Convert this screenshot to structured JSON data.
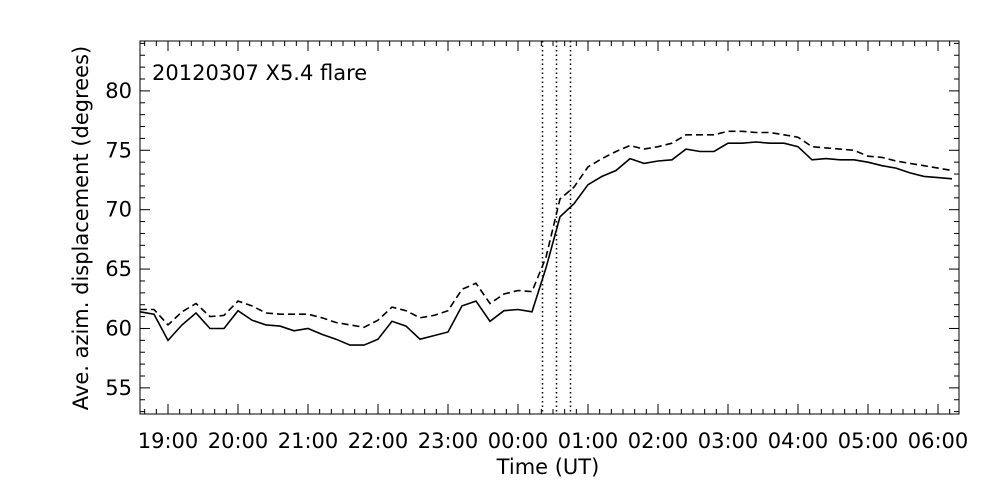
{
  "chart_data": {
    "type": "line",
    "title": "",
    "annotation": "20120307 X5.4 flare",
    "xlabel": "Time (UT)",
    "ylabel": "Ave. azim. displacement (degrees)",
    "x_tick_labels": [
      "19:00",
      "20:00",
      "21:00",
      "22:00",
      "23:00",
      "00:00",
      "01:00",
      "02:00",
      "03:00",
      "04:00",
      "05:00",
      "06:00"
    ],
    "y_tick_labels": [
      "55",
      "60",
      "65",
      "70",
      "75",
      "80"
    ],
    "y_ticks": [
      55,
      60,
      65,
      70,
      75,
      80
    ],
    "ylim": [
      52.8,
      84.2
    ],
    "xlim_hours": [
      18.6,
      30.3
    ],
    "grid": false,
    "legend": "none",
    "vertical_markers_hours": [
      24.35,
      24.55,
      24.75
    ],
    "series": [
      {
        "style": "solid",
        "x": [
          18.6,
          18.8,
          19.0,
          19.2,
          19.4,
          19.6,
          19.8,
          20.0,
          20.2,
          20.4,
          20.6,
          20.8,
          21.0,
          21.2,
          21.4,
          21.6,
          21.8,
          22.0,
          22.2,
          22.4,
          22.6,
          22.8,
          23.0,
          23.2,
          23.4,
          23.6,
          23.8,
          24.0,
          24.2,
          24.4,
          24.6,
          24.8,
          25.0,
          25.2,
          25.4,
          25.6,
          25.8,
          26.0,
          26.2,
          26.4,
          26.6,
          26.8,
          27.0,
          27.2,
          27.4,
          27.6,
          27.8,
          28.0,
          28.2,
          28.4,
          28.6,
          28.8,
          29.0,
          29.2,
          29.4,
          29.6,
          29.8,
          30.0,
          30.2
        ],
        "y": [
          61.4,
          61.2,
          59.0,
          60.3,
          61.3,
          60.0,
          60.0,
          61.5,
          60.7,
          60.3,
          60.2,
          59.8,
          60.0,
          59.5,
          59.1,
          58.6,
          58.6,
          59.1,
          60.6,
          60.2,
          59.1,
          59.4,
          59.7,
          61.9,
          62.3,
          60.6,
          61.5,
          61.6,
          61.4,
          65.1,
          69.4,
          70.5,
          72.1,
          72.8,
          73.3,
          74.3,
          73.9,
          74.1,
          74.2,
          75.1,
          74.9,
          74.9,
          75.6,
          75.6,
          75.7,
          75.6,
          75.6,
          75.3,
          74.2,
          74.3,
          74.2,
          74.2,
          74.0,
          73.7,
          73.5,
          73.1,
          72.8,
          72.7,
          72.6
        ]
      },
      {
        "style": "dashed",
        "x": [
          18.6,
          18.8,
          19.0,
          19.2,
          19.4,
          19.6,
          19.8,
          20.0,
          20.2,
          20.4,
          20.6,
          20.8,
          21.0,
          21.2,
          21.4,
          21.6,
          21.8,
          22.0,
          22.2,
          22.4,
          22.6,
          22.8,
          23.0,
          23.2,
          23.4,
          23.6,
          23.8,
          24.0,
          24.2,
          24.4,
          24.6,
          24.8,
          25.0,
          25.2,
          25.4,
          25.6,
          25.8,
          26.0,
          26.2,
          26.4,
          26.6,
          26.8,
          27.0,
          27.2,
          27.4,
          27.6,
          27.8,
          28.0,
          28.2,
          28.4,
          28.6,
          28.8,
          29.0,
          29.2,
          29.4,
          29.6,
          29.8,
          30.0,
          30.2
        ],
        "y": [
          61.6,
          61.6,
          60.3,
          61.4,
          62.1,
          61.0,
          61.1,
          62.3,
          61.9,
          61.3,
          61.2,
          61.2,
          61.2,
          60.9,
          60.5,
          60.3,
          60.1,
          60.7,
          61.8,
          61.5,
          60.9,
          61.1,
          61.5,
          63.3,
          63.8,
          62.1,
          62.9,
          63.2,
          63.1,
          66.0,
          70.9,
          71.9,
          73.6,
          74.3,
          74.9,
          75.4,
          75.1,
          75.3,
          75.6,
          76.3,
          76.3,
          76.3,
          76.6,
          76.6,
          76.5,
          76.5,
          76.3,
          76.1,
          75.3,
          75.2,
          75.1,
          75.0,
          74.5,
          74.4,
          74.1,
          73.9,
          73.7,
          73.5,
          73.3
        ]
      }
    ]
  }
}
